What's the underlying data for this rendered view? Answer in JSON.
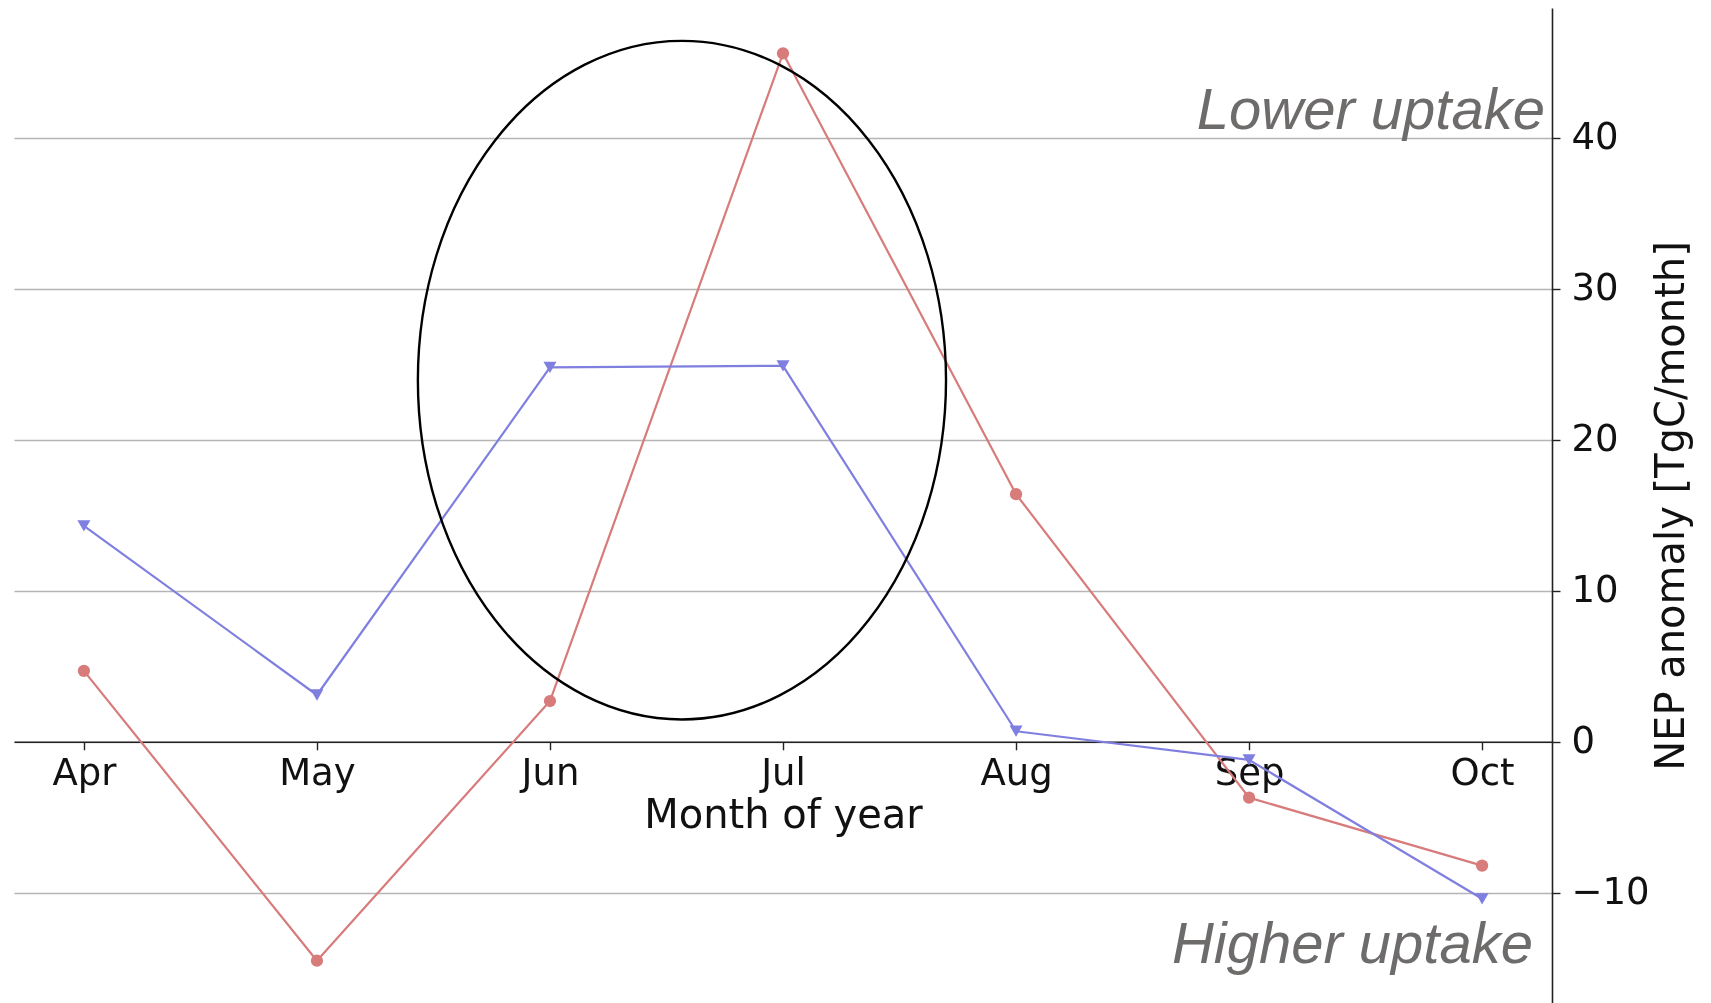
{
  "chart_data": {
    "type": "line",
    "xlabel": "Month of year",
    "ylabel": "NEP anomaly [TgC/month]",
    "categories": [
      "Apr",
      "May",
      "Jun",
      "Jul",
      "Aug",
      "Sep",
      "Oct"
    ],
    "series": [
      {
        "color": "#d77b7b",
        "marker": "circle",
        "values": [
          4.7,
          -14.5,
          2.7,
          45.6,
          16.4,
          -3.7,
          -8.2
        ]
      },
      {
        "color": "#7f7fe0",
        "marker": "triangle",
        "values": [
          14.3,
          3.1,
          24.8,
          24.9,
          0.7,
          -1.2,
          -10.4
        ]
      }
    ],
    "ylim": [
      -17.3,
      48.6
    ],
    "yticks": [
      -10,
      0,
      10,
      20,
      30,
      40
    ],
    "grid": "y",
    "annotations": [
      "Lower uptake",
      "Higher uptake"
    ]
  }
}
